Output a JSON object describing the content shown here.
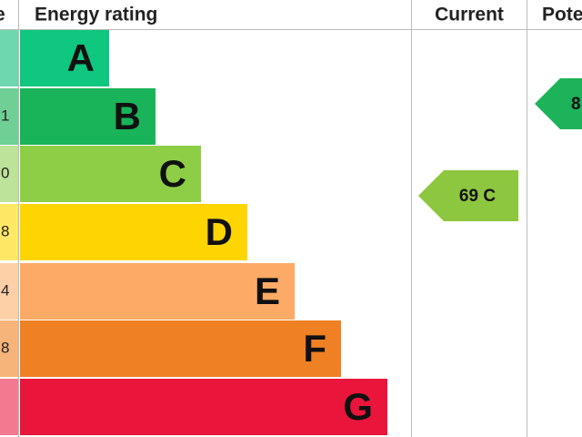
{
  "header": {
    "score": "e",
    "rating": "Energy rating",
    "current": "Current",
    "potential": "Pote"
  },
  "rows": [
    {
      "band": "A",
      "score": ""
    },
    {
      "band": "B",
      "score": "1"
    },
    {
      "band": "C",
      "score": "0"
    },
    {
      "band": "D",
      "score": "8"
    },
    {
      "band": "E",
      "score": "4"
    },
    {
      "band": "F",
      "score": "8"
    },
    {
      "band": "G",
      "score": ""
    }
  ],
  "current": "69 C",
  "potential": "8"
}
